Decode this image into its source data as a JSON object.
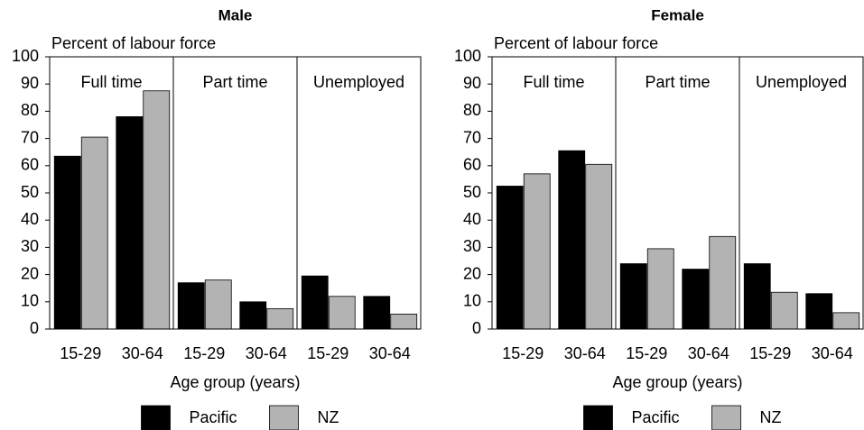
{
  "chart_data": [
    {
      "type": "bar",
      "title": "Male",
      "y_label": "Percent of labour force",
      "x_label": "Age group (years)",
      "groups": [
        "Full time",
        "Part time",
        "Unemployed"
      ],
      "categories": [
        "15-29",
        "30-64",
        "15-29",
        "30-64",
        "15-29",
        "30-64"
      ],
      "series": [
        {
          "name": "Pacific",
          "color": "#000000",
          "values": [
            63.5,
            78,
            17,
            10,
            19.5,
            12
          ]
        },
        {
          "name": "NZ",
          "color": "#b3b3b3",
          "values": [
            70.5,
            87.5,
            18,
            7.5,
            12,
            5.5
          ]
        }
      ],
      "ylim": [
        0,
        100
      ],
      "yticks": [
        0,
        10,
        20,
        30,
        40,
        50,
        60,
        70,
        80,
        90,
        100
      ]
    },
    {
      "type": "bar",
      "title": "Female",
      "y_label": "Percent of labour force",
      "x_label": "Age group (years)",
      "groups": [
        "Full time",
        "Part time",
        "Unemployed"
      ],
      "categories": [
        "15-29",
        "30-64",
        "15-29",
        "30-64",
        "15-29",
        "30-64"
      ],
      "series": [
        {
          "name": "Pacific",
          "color": "#000000",
          "values": [
            52.5,
            65.5,
            24,
            22,
            24,
            13
          ]
        },
        {
          "name": "NZ",
          "color": "#b3b3b3",
          "values": [
            57,
            60.5,
            29.5,
            34,
            13.5,
            6
          ]
        }
      ],
      "ylim": [
        0,
        100
      ],
      "yticks": [
        0,
        10,
        20,
        30,
        40,
        50,
        60,
        70,
        80,
        90,
        100
      ]
    }
  ]
}
